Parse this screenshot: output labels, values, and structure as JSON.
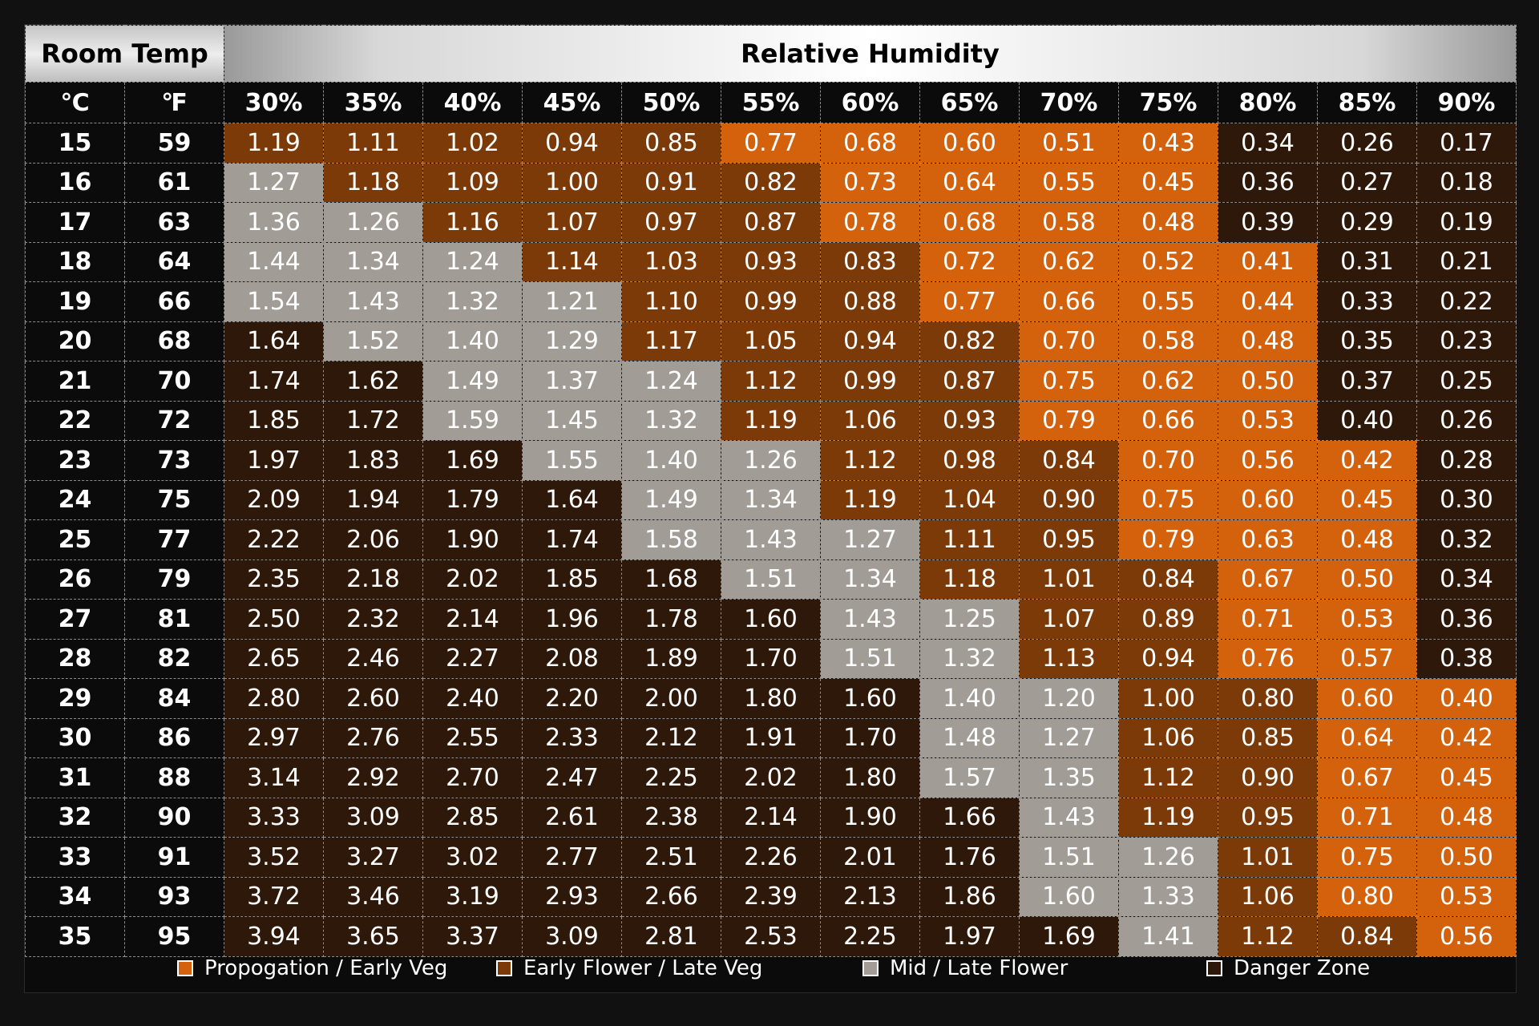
{
  "colors": {
    "propagation": "#d4620c",
    "early_flower": "#7b3a08",
    "mid_flower": "#a29c97",
    "danger": "#2e180a"
  },
  "header": {
    "room_temp": "Room Temp",
    "relative_humidity": "Relative Humidity",
    "celsius_unit": "℃",
    "fahrenheit_unit": "℉"
  },
  "legend": [
    {
      "label": "Propogation / Early Veg",
      "zone": "propagation"
    },
    {
      "label": "Early Flower / Late Veg",
      "zone": "early_flower"
    },
    {
      "label": "Mid / Late Flower",
      "zone": "mid_flower"
    },
    {
      "label": "Danger Zone",
      "zone": "danger"
    }
  ],
  "chart_data": {
    "type": "table",
    "title": "",
    "x_label": "Relative Humidity",
    "y_label": "Room Temp",
    "humidity": [
      "30%",
      "35%",
      "40%",
      "45%",
      "50%",
      "55%",
      "60%",
      "65%",
      "70%",
      "75%",
      "80%",
      "85%",
      "90%"
    ],
    "temps_c": [
      "15",
      "16",
      "17",
      "18",
      "19",
      "20",
      "21",
      "22",
      "23",
      "24",
      "25",
      "26",
      "27",
      "28",
      "29",
      "30",
      "31",
      "32",
      "33",
      "34",
      "35"
    ],
    "temps_f": [
      "59",
      "61",
      "63",
      "64",
      "66",
      "68",
      "70",
      "72",
      "73",
      "75",
      "77",
      "79",
      "81",
      "82",
      "84",
      "86",
      "88",
      "90",
      "91",
      "93",
      "95"
    ],
    "values": [
      [
        "1.19",
        "1.11",
        "1.02",
        "0.94",
        "0.85",
        "0.77",
        "0.68",
        "0.60",
        "0.51",
        "0.43",
        "0.34",
        "0.26",
        "0.17"
      ],
      [
        "1.27",
        "1.18",
        "1.09",
        "1.00",
        "0.91",
        "0.82",
        "0.73",
        "0.64",
        "0.55",
        "0.45",
        "0.36",
        "0.27",
        "0.18"
      ],
      [
        "1.36",
        "1.26",
        "1.16",
        "1.07",
        "0.97",
        "0.87",
        "0.78",
        "0.68",
        "0.58",
        "0.48",
        "0.39",
        "0.29",
        "0.19"
      ],
      [
        "1.44",
        "1.34",
        "1.24",
        "1.14",
        "1.03",
        "0.93",
        "0.83",
        "0.72",
        "0.62",
        "0.52",
        "0.41",
        "0.31",
        "0.21"
      ],
      [
        "1.54",
        "1.43",
        "1.32",
        "1.21",
        "1.10",
        "0.99",
        "0.88",
        "0.77",
        "0.66",
        "0.55",
        "0.44",
        "0.33",
        "0.22"
      ],
      [
        "1.64",
        "1.52",
        "1.40",
        "1.29",
        "1.17",
        "1.05",
        "0.94",
        "0.82",
        "0.70",
        "0.58",
        "0.48",
        "0.35",
        "0.23"
      ],
      [
        "1.74",
        "1.62",
        "1.49",
        "1.37",
        "1.24",
        "1.12",
        "0.99",
        "0.87",
        "0.75",
        "0.62",
        "0.50",
        "0.37",
        "0.25"
      ],
      [
        "1.85",
        "1.72",
        "1.59",
        "1.45",
        "1.32",
        "1.19",
        "1.06",
        "0.93",
        "0.79",
        "0.66",
        "0.53",
        "0.40",
        "0.26"
      ],
      [
        "1.97",
        "1.83",
        "1.69",
        "1.55",
        "1.40",
        "1.26",
        "1.12",
        "0.98",
        "0.84",
        "0.70",
        "0.56",
        "0.42",
        "0.28"
      ],
      [
        "2.09",
        "1.94",
        "1.79",
        "1.64",
        "1.49",
        "1.34",
        "1.19",
        "1.04",
        "0.90",
        "0.75",
        "0.60",
        "0.45",
        "0.30"
      ],
      [
        "2.22",
        "2.06",
        "1.90",
        "1.74",
        "1.58",
        "1.43",
        "1.27",
        "1.11",
        "0.95",
        "0.79",
        "0.63",
        "0.48",
        "0.32"
      ],
      [
        "2.35",
        "2.18",
        "2.02",
        "1.85",
        "1.68",
        "1.51",
        "1.34",
        "1.18",
        "1.01",
        "0.84",
        "0.67",
        "0.50",
        "0.34"
      ],
      [
        "2.50",
        "2.32",
        "2.14",
        "1.96",
        "1.78",
        "1.60",
        "1.43",
        "1.25",
        "1.07",
        "0.89",
        "0.71",
        "0.53",
        "0.36"
      ],
      [
        "2.65",
        "2.46",
        "2.27",
        "2.08",
        "1.89",
        "1.70",
        "1.51",
        "1.32",
        "1.13",
        "0.94",
        "0.76",
        "0.57",
        "0.38"
      ],
      [
        "2.80",
        "2.60",
        "2.40",
        "2.20",
        "2.00",
        "1.80",
        "1.60",
        "1.40",
        "1.20",
        "1.00",
        "0.80",
        "0.60",
        "0.40"
      ],
      [
        "2.97",
        "2.76",
        "2.55",
        "2.33",
        "2.12",
        "1.91",
        "1.70",
        "1.48",
        "1.27",
        "1.06",
        "0.85",
        "0.64",
        "0.42"
      ],
      [
        "3.14",
        "2.92",
        "2.70",
        "2.47",
        "2.25",
        "2.02",
        "1.80",
        "1.57",
        "1.35",
        "1.12",
        "0.90",
        "0.67",
        "0.45"
      ],
      [
        "3.33",
        "3.09",
        "2.85",
        "2.61",
        "2.38",
        "2.14",
        "1.90",
        "1.66",
        "1.43",
        "1.19",
        "0.95",
        "0.71",
        "0.48"
      ],
      [
        "3.52",
        "3.27",
        "3.02",
        "2.77",
        "2.51",
        "2.26",
        "2.01",
        "1.76",
        "1.51",
        "1.26",
        "1.01",
        "0.75",
        "0.50"
      ],
      [
        "3.72",
        "3.46",
        "3.19",
        "2.93",
        "2.66",
        "2.39",
        "2.13",
        "1.86",
        "1.60",
        "1.33",
        "1.06",
        "0.80",
        "0.53"
      ],
      [
        "3.94",
        "3.65",
        "3.37",
        "3.09",
        "2.81",
        "2.53",
        "2.25",
        "1.97",
        "1.69",
        "1.41",
        "1.12",
        "0.84",
        "0.56"
      ]
    ],
    "zones": [
      [
        "E",
        "E",
        "E",
        "E",
        "E",
        "P",
        "P",
        "P",
        "P",
        "P",
        "D",
        "D",
        "D"
      ],
      [
        "M",
        "E",
        "E",
        "E",
        "E",
        "E",
        "P",
        "P",
        "P",
        "P",
        "D",
        "D",
        "D"
      ],
      [
        "M",
        "M",
        "E",
        "E",
        "E",
        "E",
        "P",
        "P",
        "P",
        "P",
        "D",
        "D",
        "D"
      ],
      [
        "M",
        "M",
        "M",
        "E",
        "E",
        "E",
        "E",
        "P",
        "P",
        "P",
        "P",
        "D",
        "D"
      ],
      [
        "M",
        "M",
        "M",
        "M",
        "E",
        "E",
        "E",
        "P",
        "P",
        "P",
        "P",
        "D",
        "D"
      ],
      [
        "D",
        "M",
        "M",
        "M",
        "E",
        "E",
        "E",
        "E",
        "P",
        "P",
        "P",
        "D",
        "D"
      ],
      [
        "D",
        "D",
        "M",
        "M",
        "M",
        "E",
        "E",
        "E",
        "P",
        "P",
        "P",
        "D",
        "D"
      ],
      [
        "D",
        "D",
        "M",
        "M",
        "M",
        "E",
        "E",
        "E",
        "P",
        "P",
        "P",
        "D",
        "D"
      ],
      [
        "D",
        "D",
        "D",
        "M",
        "M",
        "M",
        "E",
        "E",
        "E",
        "P",
        "P",
        "P",
        "D"
      ],
      [
        "D",
        "D",
        "D",
        "D",
        "M",
        "M",
        "E",
        "E",
        "E",
        "P",
        "P",
        "P",
        "D"
      ],
      [
        "D",
        "D",
        "D",
        "D",
        "M",
        "M",
        "M",
        "E",
        "E",
        "P",
        "P",
        "P",
        "D"
      ],
      [
        "D",
        "D",
        "D",
        "D",
        "D",
        "M",
        "M",
        "E",
        "E",
        "E",
        "P",
        "P",
        "D"
      ],
      [
        "D",
        "D",
        "D",
        "D",
        "D",
        "D",
        "M",
        "M",
        "E",
        "E",
        "P",
        "P",
        "D"
      ],
      [
        "D",
        "D",
        "D",
        "D",
        "D",
        "D",
        "M",
        "M",
        "E",
        "E",
        "P",
        "P",
        "D"
      ],
      [
        "D",
        "D",
        "D",
        "D",
        "D",
        "D",
        "D",
        "M",
        "M",
        "E",
        "E",
        "P",
        "P"
      ],
      [
        "D",
        "D",
        "D",
        "D",
        "D",
        "D",
        "D",
        "M",
        "M",
        "E",
        "E",
        "P",
        "P"
      ],
      [
        "D",
        "D",
        "D",
        "D",
        "D",
        "D",
        "D",
        "M",
        "M",
        "E",
        "E",
        "P",
        "P"
      ],
      [
        "D",
        "D",
        "D",
        "D",
        "D",
        "D",
        "D",
        "D",
        "M",
        "E",
        "E",
        "P",
        "P"
      ],
      [
        "D",
        "D",
        "D",
        "D",
        "D",
        "D",
        "D",
        "D",
        "M",
        "M",
        "E",
        "P",
        "P"
      ],
      [
        "D",
        "D",
        "D",
        "D",
        "D",
        "D",
        "D",
        "D",
        "M",
        "M",
        "E",
        "P",
        "P"
      ],
      [
        "D",
        "D",
        "D",
        "D",
        "D",
        "D",
        "D",
        "D",
        "D",
        "M",
        "E",
        "E",
        "P"
      ]
    ],
    "zone_legend": {
      "P": "Propogation / Early Veg",
      "E": "Early Flower / Late Veg",
      "M": "Mid / Late Flower",
      "D": "Danger Zone"
    }
  }
}
